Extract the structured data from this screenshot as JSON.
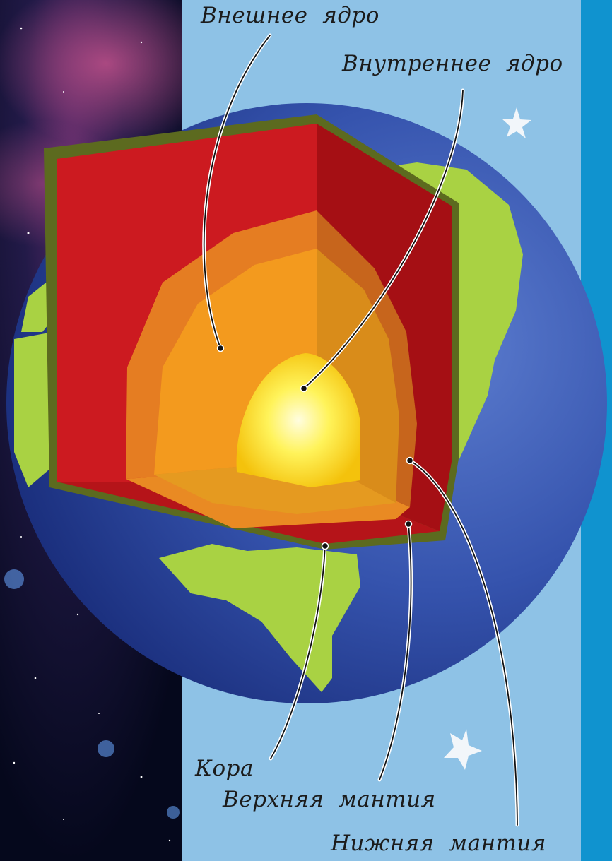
{
  "colors": {
    "page_background": "#8ec2e6",
    "side_strip": "#1093cf",
    "space": "#0a0e26",
    "ocean": "#2c4aa5",
    "land": "#a9d243",
    "crust": "#5c6a1f",
    "upper_mantle": "#b5151b",
    "lower_mantle": "#e57d22",
    "outer_core": "#f39a1e",
    "inner_core": "#fff85a"
  },
  "decorations": {
    "stars": [
      "star-icon",
      "star-icon"
    ]
  },
  "labels": {
    "outer_core": "Внешнее  ядро",
    "inner_core": "Внутреннее  ядро",
    "crust": "Кора",
    "upper_mantle": "Верхняя  мантия",
    "lower_mantle": "Нижняя  мантия"
  }
}
